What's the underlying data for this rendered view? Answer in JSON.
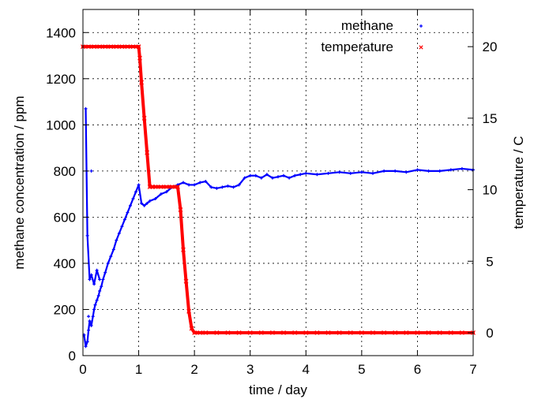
{
  "chart_data": {
    "type": "scatter",
    "xlabel": "time / day",
    "ylabel": "methane concentration / ppm",
    "y2label": "temperature / C",
    "xlim": [
      0,
      7
    ],
    "ylim": [
      0,
      1500
    ],
    "y2lim": [
      -1.6,
      22.6
    ],
    "x_ticks": [
      0,
      1,
      2,
      3,
      4,
      5,
      6,
      7
    ],
    "y_ticks": [
      0,
      200,
      400,
      600,
      800,
      1000,
      1200,
      1400
    ],
    "y2_ticks": [
      0,
      5,
      10,
      15,
      20
    ],
    "grid": true,
    "legend": "top-right",
    "series": [
      {
        "name": "methane",
        "axis": "left",
        "color": "#0000ff",
        "marker": "plus",
        "x": [
          0.02,
          0.05,
          0.08,
          0.1,
          0.12,
          0.15,
          0.18,
          0.2,
          0.22,
          0.25,
          0.28,
          0.3,
          0.33,
          0.36,
          0.4,
          0.45,
          0.5,
          0.55,
          0.6,
          0.65,
          0.7,
          0.75,
          0.8,
          0.85,
          0.9,
          0.95,
          1.0,
          1.05,
          1.1,
          1.15,
          1.2,
          1.3,
          1.4,
          1.5,
          1.6,
          1.7,
          1.8,
          1.9,
          2.0,
          2.1,
          2.2,
          2.3,
          2.4,
          2.5,
          2.6,
          2.7,
          2.8,
          2.9,
          3.0,
          3.1,
          3.2,
          3.3,
          3.4,
          3.5,
          3.6,
          3.7,
          3.8,
          3.9,
          4.0,
          4.2,
          4.4,
          4.6,
          4.8,
          5.0,
          5.2,
          5.4,
          5.6,
          5.8,
          6.0,
          6.2,
          6.4,
          6.6,
          6.8,
          7.0,
          0.05,
          0.08,
          0.12,
          0.15,
          0.2,
          0.25,
          0.3,
          0.15,
          0.1
        ],
        "y": [
          90,
          40,
          60,
          110,
          150,
          130,
          170,
          200,
          220,
          240,
          260,
          280,
          300,
          330,
          360,
          400,
          430,
          460,
          500,
          530,
          560,
          590,
          620,
          650,
          680,
          710,
          740,
          660,
          650,
          660,
          670,
          680,
          700,
          710,
          730,
          740,
          750,
          740,
          740,
          750,
          755,
          730,
          725,
          730,
          735,
          730,
          740,
          770,
          780,
          780,
          770,
          785,
          770,
          775,
          780,
          770,
          780,
          785,
          790,
          785,
          790,
          795,
          790,
          795,
          790,
          800,
          800,
          795,
          805,
          800,
          800,
          805,
          810,
          805,
          1070,
          520,
          330,
          350,
          310,
          370,
          330,
          800,
          170
        ]
      },
      {
        "name": "temperature",
        "axis": "right",
        "color": "#ff0000",
        "marker": "cross",
        "x": [
          0.0,
          0.1,
          0.2,
          0.3,
          0.4,
          0.5,
          0.6,
          0.7,
          0.8,
          0.9,
          1.0,
          1.02,
          1.05,
          1.1,
          1.15,
          1.2,
          1.25,
          1.3,
          1.4,
          1.5,
          1.6,
          1.7,
          1.75,
          1.8,
          1.85,
          1.9,
          1.95,
          2.0,
          2.1,
          2.2,
          2.4,
          2.6,
          2.8,
          3.0,
          3.2,
          3.4,
          3.6,
          3.8,
          4.0,
          4.2,
          4.4,
          4.6,
          4.8,
          5.0,
          5.2,
          5.4,
          5.6,
          5.8,
          6.0,
          6.2,
          6.4,
          6.6,
          6.8,
          7.0
        ],
        "y": [
          20,
          20,
          20,
          20,
          20,
          20,
          20,
          20,
          20,
          20,
          20,
          19.2,
          17.5,
          15.0,
          12.6,
          10.2,
          10.2,
          10.2,
          10.2,
          10.2,
          10.2,
          10.2,
          8.6,
          5.8,
          3.6,
          1.5,
          0.3,
          0.0,
          0.0,
          0.0,
          0.0,
          0.0,
          0.0,
          0.0,
          0.0,
          0.0,
          0.0,
          0.0,
          0.0,
          0.0,
          0.0,
          0.0,
          0.0,
          0.0,
          0.0,
          0.0,
          0.0,
          0.0,
          0.0,
          0.0,
          0.0,
          0.0,
          0.0,
          0.0
        ]
      }
    ]
  }
}
